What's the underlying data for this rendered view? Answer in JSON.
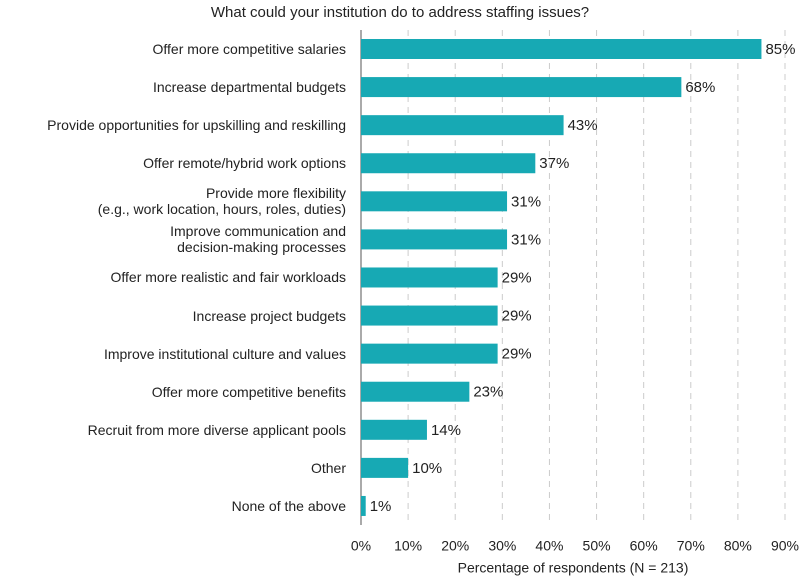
{
  "chart_data": {
    "type": "bar",
    "orientation": "horizontal",
    "title": "What could your institution do to address staffing issues?",
    "x_label": "Percentage of respondents (N = 213)",
    "categories": [
      "Offer more competitive salaries",
      "Increase departmental budgets",
      "Provide opportunities for upskilling and reskilling",
      "Offer remote/hybrid work options",
      "Provide more flexibility\n(e.g., work location, hours, roles, duties)",
      "Improve communication and\ndecision-making processes",
      "Offer more realistic and fair workloads",
      "Increase project budgets",
      "Improve institutional culture and values",
      "Offer more competitive benefits",
      "Recruit from more diverse applicant pools",
      "Other",
      "None of the above"
    ],
    "values": [
      85,
      68,
      43,
      37,
      31,
      31,
      29,
      29,
      29,
      23,
      14,
      10,
      1
    ],
    "value_labels": [
      "85%",
      "68%",
      "43%",
      "37%",
      "31%",
      "31%",
      "29%",
      "29%",
      "29%",
      "23%",
      "14%",
      "10%",
      "1%"
    ],
    "color": "#17a9b4",
    "xlim": [
      0,
      90
    ],
    "xticks": [
      {
        "value": 0,
        "label": "0%"
      },
      {
        "value": 10,
        "label": "10%"
      },
      {
        "value": 20,
        "label": "20%"
      },
      {
        "value": 30,
        "label": "30%"
      },
      {
        "value": 40,
        "label": "40%"
      },
      {
        "value": 50,
        "label": "50%"
      },
      {
        "value": 60,
        "label": "60%"
      },
      {
        "value": 70,
        "label": "70%"
      },
      {
        "value": 80,
        "label": "80%"
      },
      {
        "value": 90,
        "label": "90%"
      }
    ],
    "grid": true
  }
}
